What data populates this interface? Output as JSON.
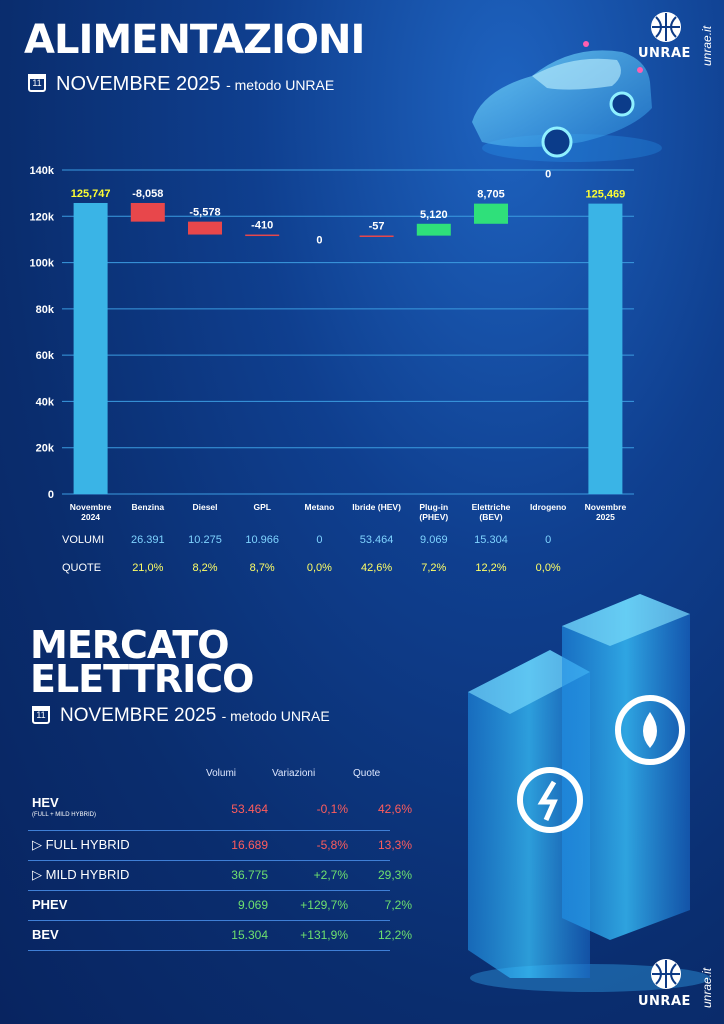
{
  "section1": {
    "title": "ALIMENTAZIONI",
    "subtitle_main": "NOVEMBRE 2025",
    "subtitle_method": "- metodo UNRAE",
    "calendar_day": "11"
  },
  "brand": {
    "logo_text": "UNRAE",
    "site": "unrae.it",
    "accent": "#ffffff"
  },
  "chart_data": {
    "type": "bar",
    "subtype": "waterfall",
    "categories": [
      "Novembre 2024",
      "Benzina",
      "Diesel",
      "GPL",
      "Metano",
      "Ibride (HEV)",
      "Plug-in (PHEV)",
      "Elettriche (BEV)",
      "Idrogeno",
      "Novembre 2025"
    ],
    "category_lines": [
      [
        "Novembre",
        "2024"
      ],
      [
        "Benzina"
      ],
      [
        "Diesel"
      ],
      [
        "GPL"
      ],
      [
        "Metano"
      ],
      [
        "Ibride (HEV)"
      ],
      [
        "Plug-in",
        "(PHEV)"
      ],
      [
        "Elettriche",
        "(BEV)"
      ],
      [
        "Idrogeno"
      ],
      [
        "Novembre",
        "2025"
      ]
    ],
    "values": [
      125747,
      -8058,
      -5578,
      -410,
      0,
      -57,
      5120,
      8705,
      0,
      125469
    ],
    "labels": [
      "125,747",
      "-8,058",
      "-5,578",
      "-410",
      "0",
      "-57",
      "5,120",
      "8,705",
      "0",
      "125,469"
    ],
    "kinds": [
      "total",
      "delta",
      "delta",
      "delta",
      "delta",
      "delta",
      "delta",
      "delta",
      "delta",
      "total"
    ],
    "ylim": [
      0,
      140000
    ],
    "yticks": [
      0,
      20000,
      40000,
      60000,
      80000,
      100000,
      120000,
      140000
    ],
    "ytick_labels": [
      "0",
      "20k",
      "40k",
      "60k",
      "80k",
      "100k",
      "120k",
      "140k"
    ],
    "colors": {
      "total": "#3ab4e6",
      "negative": "#e8474b",
      "positive": "#2fe07a",
      "total_label": "#ffff33"
    },
    "grid": true
  },
  "stats": {
    "volumi_label": "VOLUMI",
    "quote_label": "QUOTE",
    "volumi": [
      "26.391",
      "10.275",
      "10.966",
      "0",
      "53.464",
      "9.069",
      "15.304",
      "0"
    ],
    "quote": [
      "21,0%",
      "8,2%",
      "8,7%",
      "0,0%",
      "42,6%",
      "7,2%",
      "12,2%",
      "0,0%"
    ]
  },
  "section2": {
    "title_line1": "MERCATO",
    "title_line2": "ELETTRICO",
    "subtitle_main": "NOVEMBRE 2025",
    "subtitle_method": "- metodo UNRAE",
    "calendar_day": "11"
  },
  "market_table": {
    "headers": {
      "volumi": "Volumi",
      "variazioni": "Variazioni",
      "quote": "Quote"
    },
    "rows": [
      {
        "label": "HEV",
        "sublabel": "(FULL + MILD HYBRID)",
        "volumi": "53.464",
        "variazione": "-0,1%",
        "quota": "42,6%"
      },
      {
        "label": "FULL HYBRID",
        "sublabel": "",
        "volumi": "16.689",
        "variazione": "-5,8%",
        "quota": "13,3%"
      },
      {
        "label": "MILD HYBRID",
        "sublabel": "",
        "volumi": "36.775",
        "variazione": "+2,7%",
        "quota": "29,3%"
      },
      {
        "label": "PHEV",
        "sublabel": "",
        "volumi": "9.069",
        "variazione": "+129,7%",
        "quota": "7,2%"
      },
      {
        "label": "BEV",
        "sublabel": "",
        "volumi": "15.304",
        "variazione": "+131,9%",
        "quota": "12,2%"
      }
    ]
  }
}
